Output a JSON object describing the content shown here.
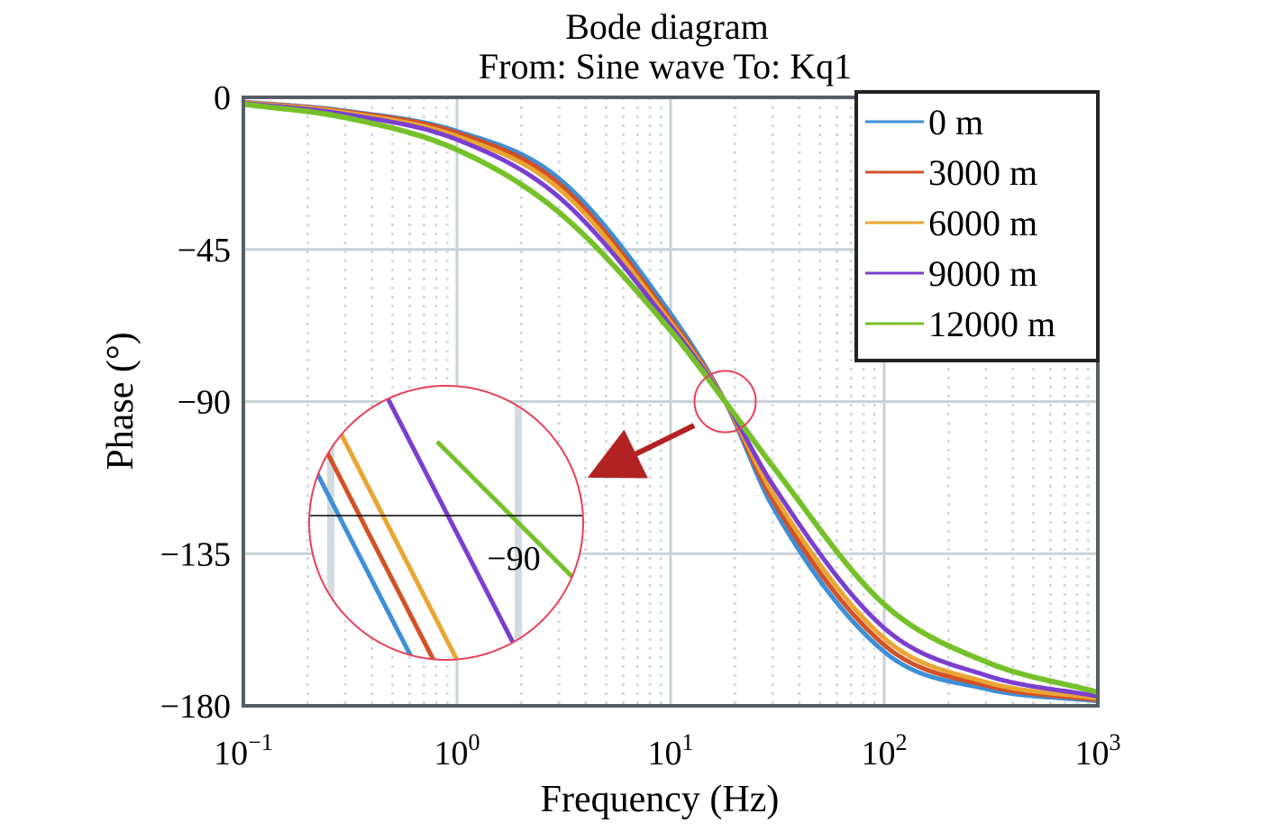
{
  "chart_data": {
    "type": "line",
    "title": "Bode diagram",
    "subtitle": "From: Sine wave  To: Kq1",
    "xlabel": "Frequency (Hz)",
    "ylabel": "Phase (°)",
    "x_scale": "log",
    "xlim": [
      0.1,
      1000
    ],
    "ylim": [
      -180,
      0
    ],
    "x_ticks": [
      {
        "base": "10",
        "exp": "−1",
        "value": 0.1
      },
      {
        "base": "10",
        "exp": "0",
        "value": 1
      },
      {
        "base": "10",
        "exp": "1",
        "value": 10
      },
      {
        "base": "10",
        "exp": "2",
        "value": 100
      },
      {
        "base": "10",
        "exp": "3",
        "value": 1000
      }
    ],
    "y_ticks": [
      {
        "label": "0",
        "value": 0
      },
      {
        "label": "−45",
        "value": -45
      },
      {
        "label": "−90",
        "value": -90
      },
      {
        "label": "−135",
        "value": -135
      },
      {
        "label": "−180",
        "value": -180
      }
    ],
    "grid": true,
    "legend_position": "top-right",
    "series": [
      {
        "name": "0 m",
        "color": "#3d8fd6",
        "x": [
          0.1,
          0.3,
          1,
          3,
          10,
          18,
          30,
          100,
          300,
          1000
        ],
        "y": [
          -1.3,
          -4.0,
          -10.0,
          -24.0,
          -64.0,
          -90.0,
          -121.0,
          -164.0,
          -175.0,
          -178.6
        ]
      },
      {
        "name": "3000 m",
        "color": "#d15227",
        "x": [
          0.1,
          0.3,
          1,
          3,
          10,
          18,
          30,
          100,
          300,
          1000
        ],
        "y": [
          -1.4,
          -4.2,
          -10.5,
          -25.5,
          -65.5,
          -90.0,
          -119.0,
          -162.0,
          -174.0,
          -178.3
        ]
      },
      {
        "name": "6000 m",
        "color": "#eaa533",
        "x": [
          0.1,
          0.3,
          1,
          3,
          10,
          18,
          30,
          100,
          300,
          1000
        ],
        "y": [
          -1.5,
          -4.5,
          -11.5,
          -27.0,
          -66.5,
          -90.0,
          -117.0,
          -160.0,
          -173.0,
          -177.8
        ]
      },
      {
        "name": "9000 m",
        "color": "#7b3fd0",
        "x": [
          0.1,
          0.3,
          1,
          3,
          10,
          18,
          30,
          100,
          300,
          1000
        ],
        "y": [
          -1.7,
          -5.0,
          -12.5,
          -29.5,
          -67.5,
          -90.0,
          -114.5,
          -157.0,
          -171.0,
          -177.2
        ]
      },
      {
        "name": "12000 m",
        "color": "#76c12a",
        "x": [
          0.1,
          0.3,
          1,
          3,
          10,
          18,
          30,
          100,
          300,
          1000
        ],
        "y": [
          -2.0,
          -6.0,
          -15.5,
          -34.0,
          -69.0,
          -90.0,
          -109.0,
          -150.0,
          -167.0,
          -176.0
        ]
      }
    ],
    "annotations": [
      {
        "type": "zoom_inset",
        "center": {
          "x": 18,
          "y": -90
        },
        "label": "−90",
        "arrow_color": "#b22222",
        "circle_color": "#e8405a"
      }
    ]
  }
}
